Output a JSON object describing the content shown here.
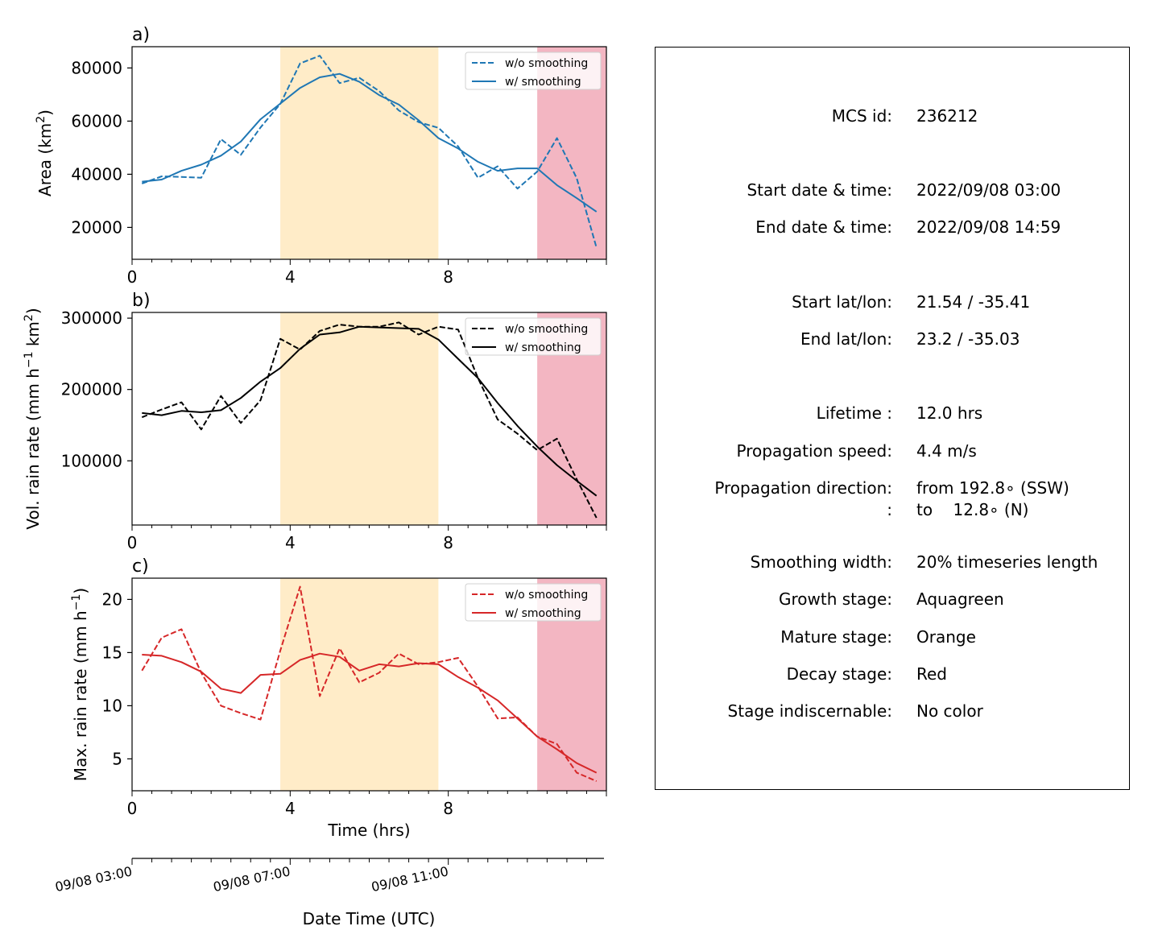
{
  "panels": [
    {
      "label": "a)",
      "ylabel": "Area  (km²)",
      "ylabel_parts": [
        "Area  (km",
        "2",
        ")"
      ],
      "yticks": [
        20000,
        40000,
        60000,
        80000
      ],
      "color": "#1f77b4"
    },
    {
      "label": "b)",
      "ylabel": "Vol. rain rate (mm h⁻¹ km²)",
      "ylabel_parts": [
        "Vol. rain rate (mm h",
        "−1",
        " km",
        "2",
        ")"
      ],
      "yticks": [
        100000,
        200000,
        300000
      ],
      "color": "#000000"
    },
    {
      "label": "c)",
      "ylabel": "Max. rain rate  (mm h⁻¹)",
      "ylabel_parts": [
        "Max. rain rate  (mm h",
        "−1",
        ")"
      ],
      "yticks": [
        5,
        10,
        15,
        20
      ],
      "color": "#d62728"
    }
  ],
  "legend": {
    "raw": "w/o smoothing",
    "smooth": "w/ smoothing"
  },
  "xaxis": {
    "xticks": [
      0,
      4,
      8
    ],
    "xlabel": "Time (hrs)"
  },
  "date_axis": {
    "ticks": [
      "09/08 03:00",
      "09/08 07:00",
      "09/08 11:00"
    ],
    "xlabel": "Date Time (UTC)"
  },
  "stage_colors": {
    "mature": "#ffecc8",
    "decay": "#f3b6c2"
  },
  "chart_data": [
    {
      "type": "line",
      "title": "a)",
      "ylabel": "Area  (km²)",
      "xlabel": "",
      "xlim": [
        0,
        12
      ],
      "ylim": [
        8000,
        88000
      ],
      "grid": false,
      "legend_position": "top-right",
      "x": [
        0.25,
        0.75,
        1.25,
        1.75,
        2.25,
        2.75,
        3.25,
        3.75,
        4.25,
        4.75,
        5.25,
        5.75,
        6.25,
        6.75,
        7.25,
        7.75,
        8.25,
        8.75,
        9.25,
        9.75,
        10.25,
        10.75,
        11.25,
        11.75
      ],
      "series": [
        {
          "name": "w/o smoothing",
          "style": "dashed",
          "values": [
            36500,
            39200,
            39000,
            38700,
            53200,
            47300,
            57600,
            66500,
            81700,
            84600,
            74300,
            76300,
            71300,
            64000,
            59600,
            57500,
            50500,
            38700,
            43000,
            34600,
            41000,
            53600,
            38500,
            12400
          ]
        },
        {
          "name": "w/ smoothing",
          "style": "solid",
          "values": [
            37200,
            38000,
            41300,
            43600,
            47000,
            52300,
            60700,
            66600,
            72500,
            76500,
            77800,
            74800,
            69800,
            66200,
            60300,
            53600,
            49700,
            44700,
            41300,
            42200,
            42200,
            35900,
            31000,
            25900
          ]
        }
      ]
    },
    {
      "type": "line",
      "title": "b)",
      "ylabel": "Vol. rain rate (mm h⁻¹ km²)",
      "xlabel": "",
      "xlim": [
        0,
        12
      ],
      "ylim": [
        10000,
        308000
      ],
      "grid": false,
      "legend_position": "top-right",
      "x": [
        0.25,
        0.75,
        1.25,
        1.75,
        2.25,
        2.75,
        3.25,
        3.75,
        4.25,
        4.75,
        5.25,
        5.75,
        6.25,
        6.75,
        7.25,
        7.75,
        8.25,
        8.75,
        9.25,
        9.75,
        10.25,
        10.75,
        11.25,
        11.75
      ],
      "series": [
        {
          "name": "w/o smoothing",
          "style": "dashed",
          "values": [
            161000,
            172000,
            182000,
            144000,
            191000,
            153000,
            185000,
            271000,
            256000,
            282000,
            291000,
            288000,
            288000,
            294000,
            277000,
            288000,
            284000,
            216000,
            158000,
            138000,
            115000,
            131000,
            74000,
            20000
          ]
        },
        {
          "name": "w/ smoothing",
          "style": "solid",
          "values": [
            167000,
            164000,
            170000,
            168000,
            171000,
            188000,
            211000,
            230000,
            257000,
            277000,
            280000,
            288000,
            287000,
            286000,
            285000,
            270000,
            243000,
            216000,
            181000,
            149000,
            120000,
            94000,
            72000,
            51000
          ]
        }
      ]
    },
    {
      "type": "line",
      "title": "c)",
      "ylabel": "Max. rain rate  (mm h⁻¹)",
      "xlabel": "Time (hrs)",
      "xlim": [
        0,
        12
      ],
      "ylim": [
        2,
        22
      ],
      "grid": false,
      "legend_position": "top-right",
      "x": [
        0.25,
        0.75,
        1.25,
        1.75,
        2.25,
        2.75,
        3.25,
        3.75,
        4.25,
        4.75,
        5.25,
        5.75,
        6.25,
        6.75,
        7.25,
        7.75,
        8.25,
        8.75,
        9.25,
        9.75,
        10.25,
        10.75,
        11.25,
        11.75
      ],
      "series": [
        {
          "name": "w/o smoothing",
          "style": "dashed",
          "values": [
            13.3,
            16.4,
            17.2,
            13.1,
            10.0,
            9.3,
            8.7,
            15.2,
            21.2,
            10.9,
            15.4,
            12.2,
            13.1,
            14.9,
            13.9,
            14.1,
            14.5,
            11.8,
            8.8,
            8.9,
            7.1,
            6.4,
            3.7,
            2.9
          ]
        },
        {
          "name": "w/ smoothing",
          "style": "solid",
          "values": [
            14.8,
            14.7,
            14.1,
            13.2,
            11.6,
            11.2,
            12.9,
            13.0,
            14.3,
            14.9,
            14.6,
            13.3,
            13.9,
            13.7,
            14.0,
            13.9,
            12.7,
            11.7,
            10.5,
            8.8,
            7.1,
            5.9,
            4.6,
            3.7
          ]
        }
      ]
    }
  ],
  "stages": {
    "mature": [
      3.75,
      7.75
    ],
    "decay": [
      10.25,
      12.0
    ]
  },
  "info": {
    "mcs_id_label": "MCS id:",
    "mcs_id": "236212",
    "start_dt_label": "Start date & time:",
    "start_dt": "2022/09/08 03:00",
    "end_dt_label": "End date & time:",
    "end_dt": "2022/09/08 14:59",
    "start_ll_label": "Start lat/lon:",
    "start_ll": "21.54 / -35.41",
    "end_ll_label": "End lat/lon:",
    "end_ll": "23.2 / -35.03",
    "lifetime_label": "Lifetime :",
    "lifetime": "12.0 hrs",
    "speed_label": "Propagation speed:",
    "speed": "4.4 m/s",
    "dir_label": "Propagation direction:",
    "dir_from": "from 192.8∘ (SSW)",
    "dir_label2": ":",
    "dir_to": "to    12.8∘ (N)",
    "smooth_label": "Smoothing width:",
    "smooth": "20% timeseries length",
    "growth_label": "Growth stage:",
    "growth": "Aquagreen",
    "mature_label": "Mature stage:",
    "mature": "Orange",
    "decay_label": "Decay stage:",
    "decay": "Red",
    "indisc_label": "Stage indiscernable:",
    "indisc": "No color"
  }
}
